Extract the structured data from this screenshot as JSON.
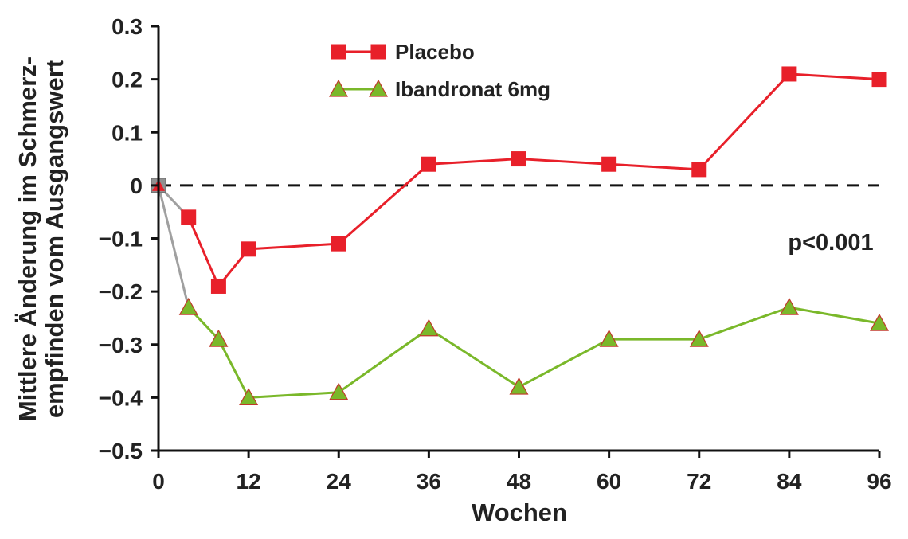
{
  "chart_data": {
    "type": "line",
    "xlabel": "Wochen",
    "ylabel": [
      "Mittlere Änderung im Schmerz-",
      "empfinden vom Ausgangswert"
    ],
    "x_ticks": [
      0,
      12,
      24,
      36,
      48,
      60,
      72,
      84,
      96
    ],
    "y_ticks": [
      0.3,
      0.2,
      0.1,
      0,
      -0.1,
      -0.2,
      -0.3,
      -0.4,
      -0.5
    ],
    "y_tick_labels": [
      "0.3",
      "0.2",
      "0.1",
      "0",
      "−0.1",
      "−0.2",
      "−0.3",
      "−0.4",
      "−0.5"
    ],
    "xlim": [
      0,
      96
    ],
    "ylim": [
      -0.5,
      0.3
    ],
    "reference_line": {
      "y": 0,
      "style": "dashed"
    },
    "legend_position": "top-left",
    "series": [
      {
        "name": "Placebo",
        "marker": "square",
        "color": "#e8202a",
        "x": [
          0,
          4,
          8,
          12,
          24,
          36,
          48,
          60,
          72,
          84,
          96
        ],
        "values": [
          0,
          -0.06,
          -0.19,
          -0.12,
          -0.11,
          0.04,
          0.05,
          0.04,
          0.03,
          0.21,
          0.2
        ]
      },
      {
        "name": "Ibandronat 6mg",
        "marker": "triangle",
        "color": "#7ab82a",
        "x": [
          0,
          4,
          8,
          12,
          24,
          36,
          48,
          60,
          72,
          84,
          96
        ],
        "values": [
          0,
          -0.23,
          -0.29,
          -0.4,
          -0.39,
          -0.27,
          -0.38,
          -0.29,
          -0.29,
          -0.23,
          -0.26
        ]
      }
    ],
    "annotation": "p<0.001"
  },
  "colors": {
    "axis": "#111111",
    "first_segment": "#a0a0a0",
    "origin_marker": "#909090",
    "triangle_edge": "#c0392b"
  }
}
